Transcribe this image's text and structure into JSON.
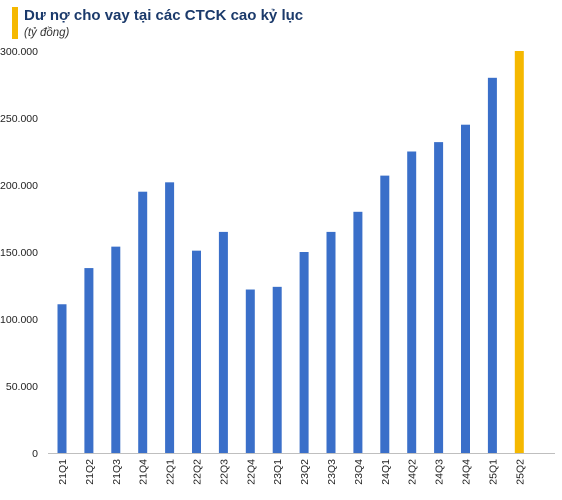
{
  "header": {
    "title": "Dư nợ cho vay tại các CTCK cao kỷ lục",
    "subtitle": "(tỷ đồng)"
  },
  "colors": {
    "accent": "#f5b800",
    "bar": "#3a6fc9",
    "bar_highlight": "#f5b800",
    "title": "#1b3a6b"
  },
  "chart_data": {
    "type": "bar",
    "title": "Dư nợ cho vay tại các CTCK cao kỷ lục",
    "subtitle": "(tỷ đồng)",
    "xlabel": "",
    "ylabel": "",
    "categories": [
      "21Q1",
      "21Q2",
      "21Q3",
      "21Q4",
      "22Q1",
      "22Q2",
      "22Q3",
      "22Q4",
      "23Q1",
      "23Q2",
      "23Q3",
      "23Q4",
      "24Q1",
      "24Q2",
      "24Q3",
      "24Q4",
      "25Q1",
      "25Q2"
    ],
    "values": [
      111000,
      138000,
      154000,
      195000,
      202000,
      151000,
      165000,
      122000,
      124000,
      150000,
      165000,
      180000,
      207000,
      225000,
      232000,
      245000,
      280000,
      300000
    ],
    "highlight_index": 17,
    "ylim": [
      0,
      300000
    ],
    "yticks": [
      0,
      50000,
      100000,
      150000,
      200000,
      250000,
      300000
    ],
    "ytick_labels": [
      "0",
      "50.000",
      "100.000",
      "150.000",
      "200.000",
      "250.000",
      "300.000"
    ],
    "grid": false,
    "legend": "none"
  }
}
